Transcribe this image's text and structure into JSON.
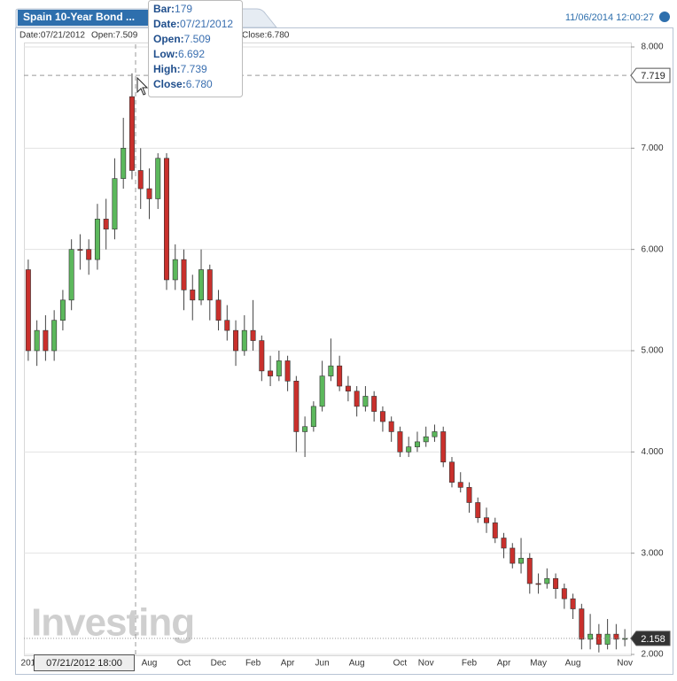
{
  "header": {
    "tab": "Spain 10-Year Bond ...",
    "timestamp": "11/06/2014 12:00:27",
    "info": [
      "Date:07/21/2012",
      "Open:7.509",
      "Close:6.780"
    ]
  },
  "tooltip": [
    {
      "label": "Bar:",
      "value": "179"
    },
    {
      "label": "Date:",
      "value": "07/21/2012"
    },
    {
      "label": "Open:",
      "value": "7.509"
    },
    {
      "label": "Low:",
      "value": "6.692"
    },
    {
      "label": "High:",
      "value": "7.739"
    },
    {
      "label": "Close:",
      "value": "6.780"
    }
  ],
  "watermark": {
    "brand": "Investing",
    ".com": ".com"
  },
  "chart_data": {
    "type": "candlestick",
    "categories": [
      "201",
      null,
      null,
      null,
      null,
      null,
      null,
      null,
      null,
      null,
      null,
      null,
      null,
      null,
      "Aug",
      null,
      null,
      null,
      "Oct",
      null,
      null,
      null,
      "Dec",
      null,
      null,
      null,
      "Feb",
      null,
      null,
      null,
      "Apr",
      null,
      null,
      null,
      "Jun",
      null,
      null,
      null,
      "Aug",
      null,
      null,
      null,
      null,
      "Oct",
      null,
      null,
      "Nov",
      null,
      null,
      null,
      null,
      "Feb",
      null,
      null,
      null,
      "Apr",
      null,
      null,
      null,
      "May",
      null,
      null,
      null,
      "Aug",
      null,
      null,
      null,
      null,
      null,
      "Nov"
    ],
    "open": [
      5.8,
      5.0,
      5.2,
      5.0,
      5.3,
      5.5,
      6.0,
      6.0,
      5.9,
      6.3,
      6.2,
      6.7,
      7.509,
      6.78,
      6.6,
      6.5,
      6.9,
      5.7,
      5.9,
      5.6,
      5.5,
      5.8,
      5.5,
      5.3,
      5.2,
      5.0,
      5.2,
      5.1,
      4.8,
      4.75,
      4.9,
      4.7,
      4.2,
      4.25,
      4.45,
      4.75,
      4.85,
      4.65,
      4.6,
      4.45,
      4.55,
      4.4,
      4.3,
      4.2,
      4.0,
      4.05,
      4.1,
      4.15,
      4.2,
      3.9,
      3.7,
      3.65,
      3.5,
      3.35,
      3.3,
      3.15,
      3.05,
      2.9,
      2.95,
      2.7,
      2.7,
      2.75,
      2.65,
      2.55,
      2.45,
      2.15,
      2.2,
      2.1,
      2.2,
      2.15
    ],
    "high": [
      5.9,
      5.3,
      5.35,
      5.4,
      5.6,
      6.1,
      6.15,
      6.1,
      6.45,
      6.5,
      6.9,
      7.3,
      7.739,
      7.0,
      6.8,
      6.95,
      6.95,
      6.05,
      6.0,
      5.75,
      6.0,
      5.85,
      5.6,
      5.45,
      5.3,
      5.35,
      5.5,
      5.15,
      4.95,
      5.0,
      4.95,
      4.75,
      4.35,
      4.5,
      4.9,
      5.12,
      4.95,
      4.75,
      4.65,
      4.65,
      4.6,
      4.45,
      4.35,
      4.25,
      4.15,
      4.2,
      4.25,
      4.27,
      4.25,
      3.95,
      3.8,
      3.7,
      3.55,
      3.45,
      3.35,
      3.2,
      3.1,
      3.15,
      3.0,
      2.8,
      2.85,
      2.8,
      2.7,
      2.6,
      2.5,
      2.4,
      2.3,
      2.35,
      2.3,
      2.25
    ],
    "low": [
      4.9,
      4.85,
      4.9,
      4.9,
      5.2,
      5.4,
      5.8,
      5.75,
      5.8,
      6.0,
      6.1,
      6.6,
      6.692,
      6.4,
      6.3,
      6.4,
      5.6,
      5.6,
      5.4,
      5.3,
      5.45,
      5.3,
      5.2,
      5.1,
      4.85,
      4.95,
      5.0,
      4.7,
      4.65,
      4.7,
      4.6,
      4.0,
      3.95,
      4.2,
      4.4,
      4.7,
      4.6,
      4.5,
      4.35,
      4.4,
      4.3,
      4.2,
      4.1,
      3.95,
      3.95,
      4.0,
      4.05,
      4.1,
      3.85,
      3.65,
      3.6,
      3.4,
      3.3,
      3.2,
      3.1,
      2.95,
      2.85,
      2.8,
      2.6,
      2.6,
      2.65,
      2.55,
      2.45,
      2.35,
      2.05,
      2.05,
      2.02,
      2.05,
      2.05,
      2.08
    ],
    "close": [
      5.0,
      5.2,
      5.0,
      5.3,
      5.5,
      6.0,
      6.0,
      5.9,
      6.3,
      6.2,
      6.7,
      7.0,
      6.78,
      6.6,
      6.5,
      6.9,
      5.7,
      5.9,
      5.6,
      5.5,
      5.8,
      5.5,
      5.3,
      5.2,
      5.0,
      5.2,
      5.1,
      4.8,
      4.75,
      4.9,
      4.7,
      4.2,
      4.25,
      4.45,
      4.75,
      4.85,
      4.65,
      4.6,
      4.45,
      4.55,
      4.4,
      4.3,
      4.2,
      4.0,
      4.05,
      4.1,
      4.15,
      4.2,
      3.9,
      3.7,
      3.65,
      3.5,
      3.35,
      3.3,
      3.15,
      3.05,
      2.9,
      2.95,
      2.7,
      2.7,
      2.75,
      2.65,
      2.55,
      2.45,
      2.15,
      2.2,
      2.1,
      2.2,
      2.15,
      2.158
    ],
    "up_color": "#5cb85c",
    "down_color": "#c9302c",
    "ylim": [
      2,
      8
    ],
    "yticks": [
      {
        "value": 2,
        "label": "2.000"
      },
      {
        "value": 3,
        "label": "3.000"
      },
      {
        "value": 4,
        "label": "4.000"
      },
      {
        "value": 5,
        "label": "5.000"
      },
      {
        "value": 6,
        "label": "6.000"
      },
      {
        "value": 7,
        "label": "7.000"
      },
      {
        "value": 8,
        "label": "8.000"
      }
    ],
    "grid": true,
    "annotations": [
      {
        "value": 7.719,
        "label": "7.719"
      },
      {
        "value": 2.158,
        "label": "2.158"
      }
    ],
    "crosshair_label": "07/21/2012 18:00"
  }
}
